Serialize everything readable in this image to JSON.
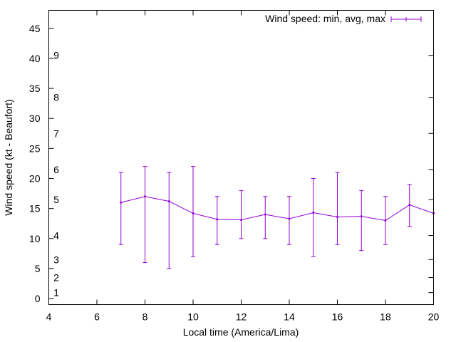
{
  "chart_data": {
    "type": "line",
    "xlabel": "Local time (America/Lima)",
    "ylabel": "Wind speed (kt - Beaufort)",
    "xlim": [
      4,
      20
    ],
    "ylim": [
      -1,
      48
    ],
    "x_ticks": [
      {
        "value": 4,
        "label": "4"
      },
      {
        "value": 6,
        "label": "6"
      },
      {
        "value": 8,
        "label": "8"
      },
      {
        "value": 10,
        "label": "10"
      },
      {
        "value": 12,
        "label": "12"
      },
      {
        "value": 14,
        "label": "14"
      },
      {
        "value": 16,
        "label": "16"
      },
      {
        "value": 18,
        "label": "18"
      },
      {
        "value": 20,
        "label": "20"
      }
    ],
    "y_ticks": [
      {
        "value": 0,
        "label": "0"
      },
      {
        "value": 5,
        "label": "5"
      },
      {
        "value": 10,
        "label": "10"
      },
      {
        "value": 15,
        "label": "15"
      },
      {
        "value": 20,
        "label": "20"
      },
      {
        "value": 25,
        "label": "25"
      },
      {
        "value": 30,
        "label": "30"
      },
      {
        "value": 35,
        "label": "35"
      },
      {
        "value": 40,
        "label": "40"
      },
      {
        "value": 45,
        "label": "45"
      }
    ],
    "beaufort_ticks": [
      {
        "value": 1,
        "label": "1"
      },
      {
        "value": 3.5,
        "label": "2"
      },
      {
        "value": 6.5,
        "label": "3"
      },
      {
        "value": 10.5,
        "label": "4"
      },
      {
        "value": 16.5,
        "label": "5"
      },
      {
        "value": 21.5,
        "label": "6"
      },
      {
        "value": 27.5,
        "label": "7"
      },
      {
        "value": 33.5,
        "label": "8"
      },
      {
        "value": 40.5,
        "label": "9"
      }
    ],
    "series": [
      {
        "name": "Wind speed: min, avg, max",
        "color": "#9400d3",
        "x": [
          7,
          8,
          9,
          10,
          11,
          12,
          13,
          14,
          15,
          16,
          17,
          18,
          19,
          20
        ],
        "avg": [
          16,
          17,
          16.2,
          14.2,
          13.2,
          13.1,
          14,
          13.3,
          14.3,
          13.6,
          13.7,
          13,
          15.6,
          14.2
        ],
        "min": [
          9,
          6,
          5,
          7,
          9,
          10,
          10,
          9,
          7,
          9,
          8,
          9,
          12,
          null
        ],
        "max": [
          21,
          22,
          21,
          22,
          17,
          18,
          17,
          17,
          20,
          21,
          18,
          17,
          19,
          null
        ]
      }
    ],
    "legend": {
      "label": "Wind speed: min, avg, max",
      "position": "top-right"
    },
    "grid": false
  }
}
